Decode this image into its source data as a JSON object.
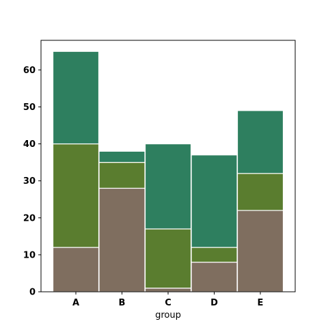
{
  "chart_data": {
    "type": "bar",
    "stacked": true,
    "categories": [
      "A",
      "B",
      "C",
      "D",
      "E"
    ],
    "series": [
      {
        "values": [
          12,
          28,
          1,
          8,
          22
        ],
        "color": "#7f6e5f"
      },
      {
        "values": [
          28,
          7,
          16,
          4,
          10
        ],
        "color": "#5a7d2f"
      },
      {
        "values": [
          25,
          3,
          23,
          25,
          17
        ],
        "color": "#2e7f5f"
      }
    ],
    "xlabel": "group",
    "ylabel": "",
    "ylim": [
      0,
      68
    ],
    "yticks": [
      0,
      10,
      20,
      30,
      40,
      50,
      60
    ],
    "grid": false,
    "legend": "none"
  }
}
